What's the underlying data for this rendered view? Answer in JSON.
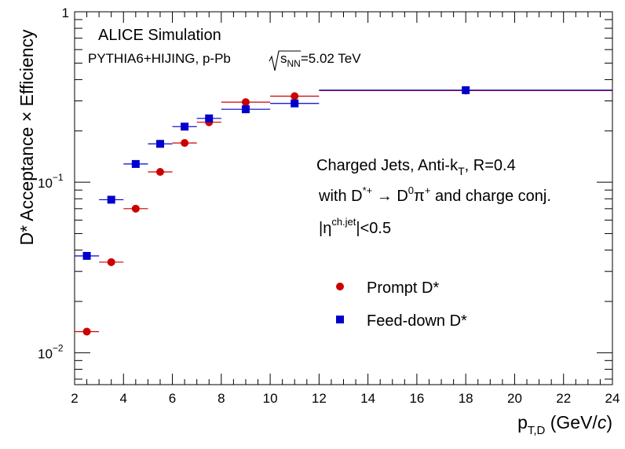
{
  "chart_data": {
    "type": "scatter",
    "xlabel": {
      "main": "p",
      "sub": "T,D",
      "rest": " (GeV/",
      "it": "c",
      "close": ")"
    },
    "ylabel": "D* Acceptance × Efficiency",
    "xlim": [
      2,
      24
    ],
    "ylim": [
      0.0065,
      1.0
    ],
    "ylog": true,
    "x_ticks": [
      "2",
      "4",
      "6",
      "8",
      "10",
      "12",
      "14",
      "16",
      "18",
      "20",
      "22",
      "24"
    ],
    "y_ticks": [
      {
        "value": 1,
        "base": "1",
        "exp": ""
      },
      {
        "value": 0.1,
        "base": "10",
        "exp": "−1"
      },
      {
        "value": 0.01,
        "base": "10",
        "exp": "−2"
      }
    ],
    "annotations": {
      "experiment": "ALICE Simulation",
      "generator": "PYTHIA6+HIJING, p-Pb",
      "energy_sub": "NN",
      "energy_value": "=5.02 TeV",
      "jet_line": {
        "pre": "Charged Jets, Anti-k",
        "sub": "T",
        "post": ", R=0.4"
      },
      "decay_line": {
        "pre": "with D",
        "sup1": "*+",
        "arrow": " → D",
        "sup2": "0",
        "pi": "π",
        "sup3": "+",
        "post": " and charge conj."
      },
      "eta_line": {
        "pre": "|η",
        "sup": "ch.jet",
        "post": "|<0.5"
      }
    },
    "series": [
      {
        "name": "Prompt D*",
        "marker": "circle",
        "color": "#cc0000",
        "points": [
          {
            "x": 2.5,
            "xlo": 2,
            "xhi": 3,
            "y": 0.0133
          },
          {
            "x": 3.5,
            "xlo": 3,
            "xhi": 4,
            "y": 0.034
          },
          {
            "x": 4.5,
            "xlo": 4,
            "xhi": 5,
            "y": 0.07
          },
          {
            "x": 5.5,
            "xlo": 5,
            "xhi": 6,
            "y": 0.115
          },
          {
            "x": 6.5,
            "xlo": 6,
            "xhi": 7,
            "y": 0.17
          },
          {
            "x": 7.5,
            "xlo": 7,
            "xhi": 8,
            "y": 0.225
          },
          {
            "x": 9,
            "xlo": 8,
            "xhi": 10,
            "y": 0.295
          },
          {
            "x": 11,
            "xlo": 10,
            "xhi": 12,
            "y": 0.32
          },
          {
            "x": 18,
            "xlo": 12,
            "xhi": 24,
            "y": 0.345
          }
        ]
      },
      {
        "name": "Feed-down D*",
        "marker": "square",
        "color": "#0000cc",
        "points": [
          {
            "x": 2.5,
            "xlo": 2,
            "xhi": 3,
            "y": 0.037
          },
          {
            "x": 3.5,
            "xlo": 3,
            "xhi": 4,
            "y": 0.079
          },
          {
            "x": 4.5,
            "xlo": 4,
            "xhi": 5,
            "y": 0.128
          },
          {
            "x": 5.5,
            "xlo": 5,
            "xhi": 6,
            "y": 0.168
          },
          {
            "x": 6.5,
            "xlo": 6,
            "xhi": 7,
            "y": 0.212
          },
          {
            "x": 7.5,
            "xlo": 7,
            "xhi": 8,
            "y": 0.237
          },
          {
            "x": 9,
            "xlo": 8,
            "xhi": 10,
            "y": 0.268
          },
          {
            "x": 11,
            "xlo": 10,
            "xhi": 12,
            "y": 0.29
          },
          {
            "x": 18,
            "xlo": 12,
            "xhi": 24,
            "y": 0.347
          }
        ]
      }
    ],
    "legend": {
      "placement": "center-left-lower"
    }
  }
}
